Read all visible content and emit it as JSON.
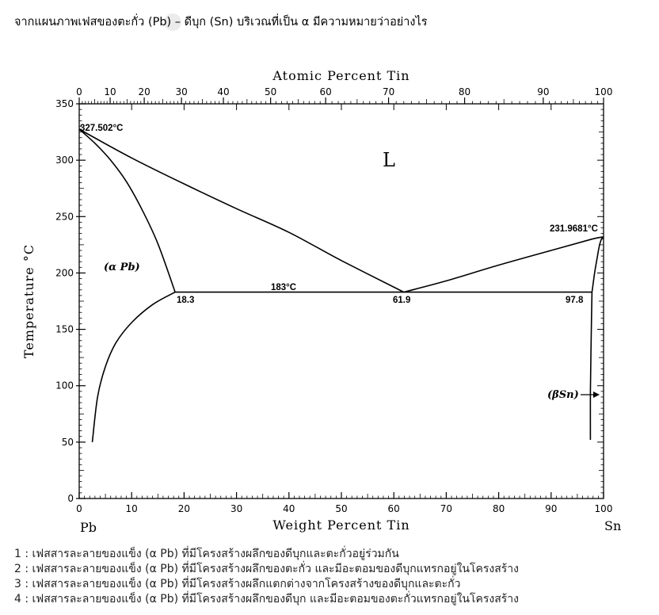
{
  "question": "จากแผนภาพเฟสของตะกั่ว (Pb) – ดีบุก (Sn) บริเวณที่เป็น α มีความหมายว่าอย่างไร",
  "chart_data": {
    "type": "line",
    "title": "",
    "top_axis_label": "Atomic Percent Tin",
    "top_ticks": [
      "0",
      "10",
      "20",
      "30",
      "40",
      "50",
      "60",
      "70",
      "80",
      "90",
      "100"
    ],
    "top_tick_at_weight_percent": [
      0,
      5.9,
      12.4,
      19.5,
      27.5,
      36.5,
      47.0,
      59.0,
      73.5,
      88.5,
      100
    ],
    "xlabel": "Weight Percent Tin",
    "ylabel": "Temperature °C",
    "xlim": [
      0,
      100
    ],
    "ylim": [
      0,
      350
    ],
    "x_ticks": [
      "0",
      "10",
      "20",
      "30",
      "40",
      "50",
      "60",
      "70",
      "80",
      "90",
      "100"
    ],
    "y_ticks": [
      "0",
      "50",
      "100",
      "150",
      "200",
      "250",
      "300",
      "350"
    ],
    "left_end_label": "Pb",
    "right_end_label": "Sn",
    "grid": false,
    "annotations": {
      "pb_melting": "327.502°C",
      "sn_melting": "231.9681°C",
      "eutectic_temp": "183°C",
      "alpha_limit": "18.3",
      "eutectic_comp": "61.9",
      "beta_limit": "97.8",
      "liquid": "L",
      "alpha_phase": "(α Pb)",
      "beta_phase": "(βSn)"
    },
    "series": [
      {
        "x": [
          0,
          10,
          20,
          30,
          40,
          50,
          61.9
        ],
        "y": [
          327.5,
          302,
          279,
          257,
          236,
          211,
          183
        ]
      },
      {
        "x": [
          61.9,
          70,
          80,
          90,
          97.8,
          100
        ],
        "y": [
          183,
          193,
          207,
          220,
          230,
          232
        ]
      },
      {
        "x": [
          0,
          3,
          6,
          9,
          12,
          15,
          18.3
        ],
        "y": [
          327.5,
          315,
          300,
          281,
          256,
          226,
          183
        ]
      },
      {
        "x": [
          18.3,
          97.8
        ],
        "y": [
          183,
          183
        ]
      },
      {
        "x": [
          18.3,
          14,
          10,
          7,
          5,
          3.5,
          2.5
        ],
        "y": [
          183,
          172,
          156,
          138,
          117,
          90,
          50
        ]
      },
      {
        "x": [
          97.8,
          98.3,
          98.8,
          99.2,
          99.6,
          100
        ],
        "y": [
          183,
          200,
          214,
          224,
          230,
          232
        ]
      },
      {
        "x": [
          97.8,
          97.7,
          97.6,
          97.5,
          97.5
        ],
        "y": [
          183,
          160,
          130,
          95,
          52
        ]
      }
    ]
  },
  "choices": [
    "1 : เฟสสารละลายของแข็ง (α Pb) ที่มีโครงสร้างผลึกของดีบุกและตะกั่วอยู่ร่วมกัน",
    "2 : เฟสสารละลายของแข็ง (α Pb) ที่มีโครงสร้างผลึกของตะกั่ว และมีอะตอมของดีบุกแทรกอยู่ในโครงสร้าง",
    "3 : เฟสสารละลายของแข็ง (α Pb) ที่มีโครงสร้างผลึกแตกต่างจากโครงสร้างของดีบุกและตะกั่ว",
    "4 : เฟสสารละลายของแข็ง (α Pb) ที่มีโครงสร้างผลึกของดีบุก และมีอะตอมของตะกั่วแทรกอยู่ในโครงสร้าง"
  ]
}
